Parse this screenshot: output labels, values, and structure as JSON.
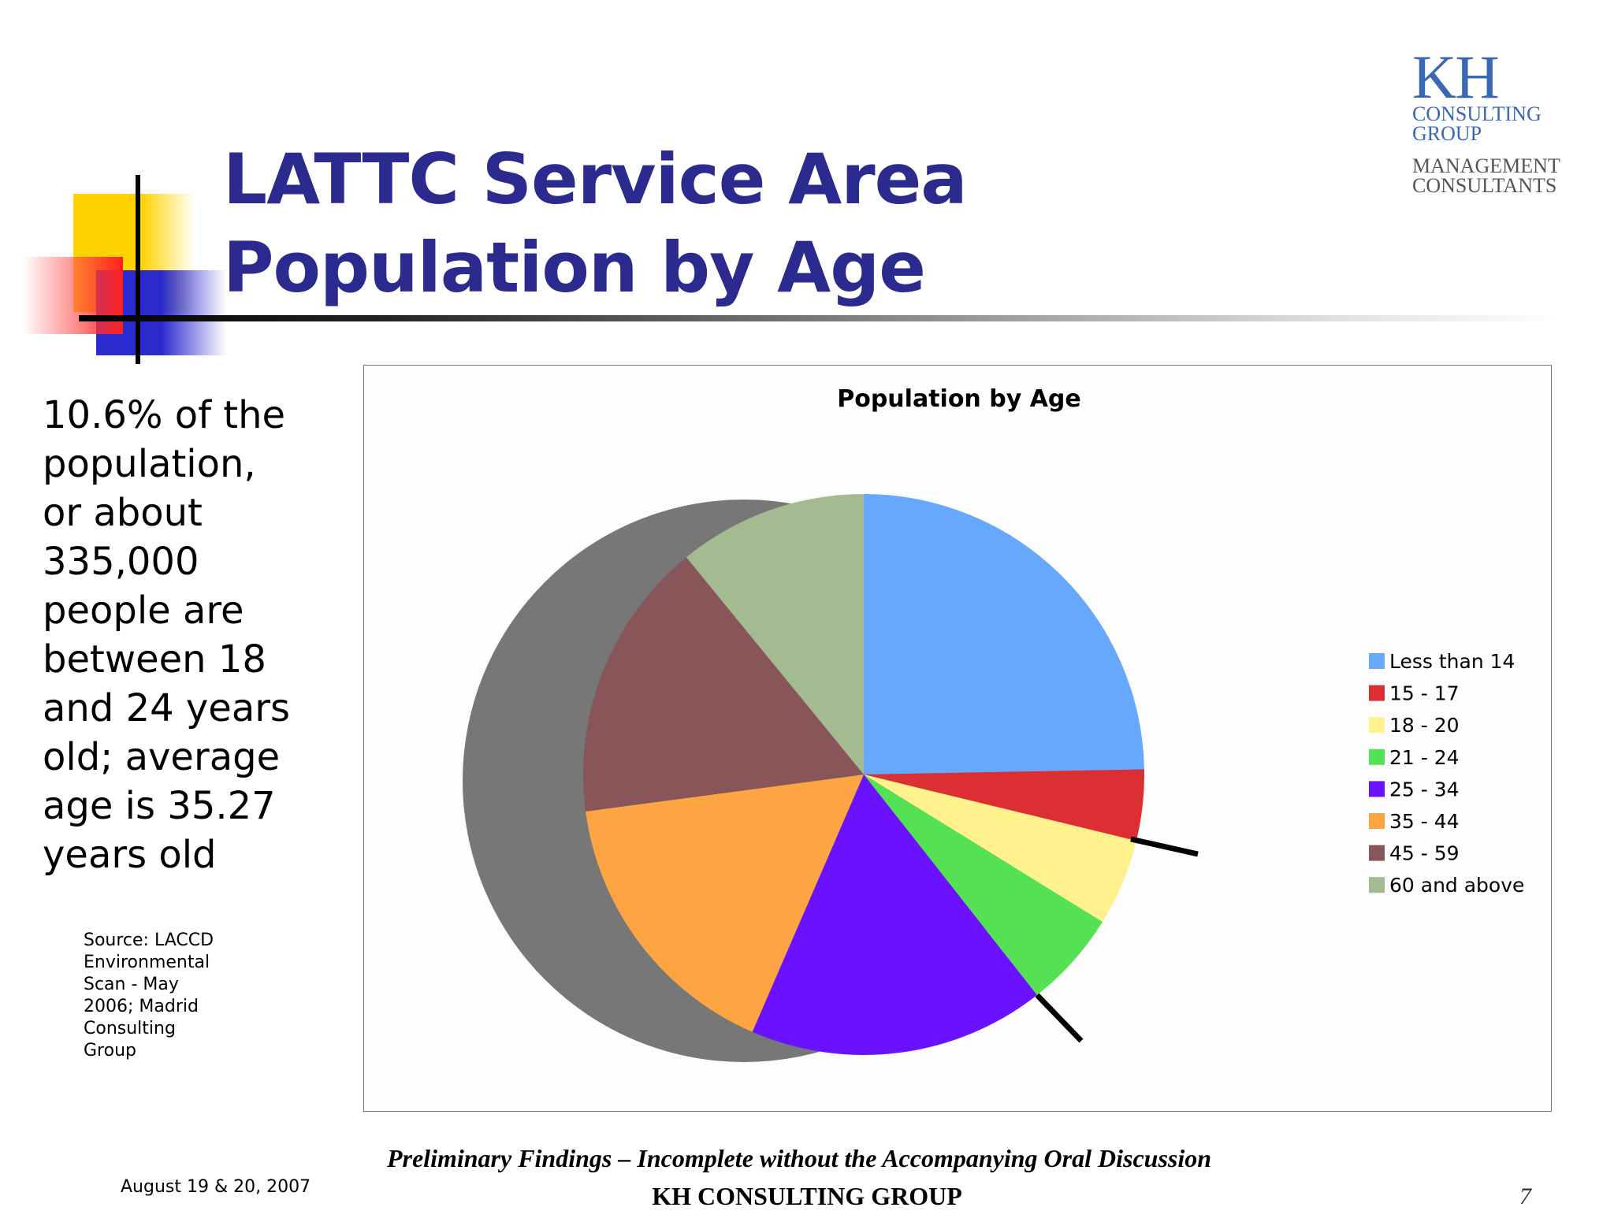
{
  "slide": {
    "title_line1": "LATTC Service Area",
    "title_line2": "Population by Age",
    "summary_lines": [
      "10.6% of the",
      "population,",
      "or about",
      "335,000",
      "people are",
      "between 18",
      "and 24 years",
      "old; average",
      "age is 35.27",
      "years old"
    ],
    "source_lines": [
      "Source: LACCD",
      "Environmental",
      "Scan - May",
      "2006; Madrid",
      "Consulting",
      "Group"
    ],
    "footer_note": "Preliminary Findings – Incomplete without the Accompanying Oral Discussion",
    "footer_date": "August 19 & 20, 2007",
    "footer_company": "KH CONSULTING GROUP",
    "page_number": "7"
  },
  "logo": {
    "kh": "KH",
    "consulting": "CONSULTING",
    "group": "GROUP",
    "management": "MANAGEMENT",
    "consultants": "CONSULTANTS"
  },
  "colors": {
    "title": "#2b2b8f",
    "logo": "#3a68b5"
  },
  "chart_data": {
    "type": "pie",
    "title": "Population by Age",
    "legend_position": "right",
    "categories": [
      "Less than 14",
      "15 - 17",
      "18 - 20",
      "21 - 24",
      "25 - 34",
      "35 - 44",
      "45 - 59",
      "60 and above"
    ],
    "values": [
      24.7,
      4.1,
      5.0,
      5.6,
      17.1,
      16.4,
      16.2,
      10.9
    ],
    "colors": [
      "#66a8fc",
      "#dc2f33",
      "#fff28c",
      "#54e254",
      "#6a12ff",
      "#fda443",
      "#885559",
      "#a4ba90"
    ]
  }
}
